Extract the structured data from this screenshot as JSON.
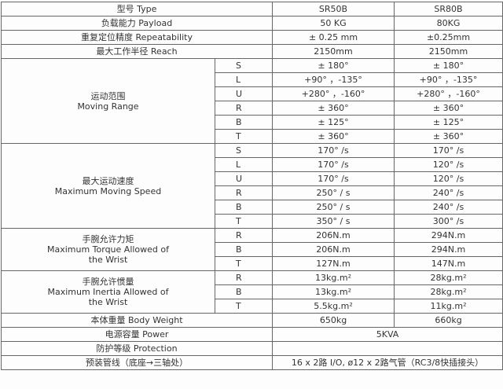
{
  "table": {
    "top_rows": [
      {
        "label": "型号 Type",
        "values": [
          "SR50B",
          "SR80B"
        ]
      },
      {
        "label": "负载能力 Payload",
        "values": [
          "50 KG",
          "80KG"
        ]
      },
      {
        "label": "重复定位精度 Repeatability",
        "values": [
          "± 0.25 mm",
          "±0.25mm"
        ]
      },
      {
        "label": "最大工作半径 Reach",
        "values": [
          "2150mm",
          "2150mm"
        ]
      }
    ],
    "groups": [
      {
        "label": [
          "运动范围",
          "Moving Range"
        ],
        "rows": [
          {
            "axis": "S",
            "values": [
              "± 180°",
              "± 180°"
            ]
          },
          {
            "axis": "L",
            "values": [
              "+90° ，-135°",
              "+90° ，-135°"
            ]
          },
          {
            "axis": "U",
            "values": [
              "+280° ，-160°",
              "+280° ，-160°"
            ]
          },
          {
            "axis": "R",
            "values": [
              "± 360°",
              "± 360°"
            ]
          },
          {
            "axis": "B",
            "values": [
              "± 125°",
              "± 125°"
            ]
          },
          {
            "axis": "T",
            "values": [
              "± 360°",
              "± 360°"
            ]
          }
        ]
      },
      {
        "label": [
          "最大运动速度",
          "Maximum Moving Speed"
        ],
        "rows": [
          {
            "axis": "S",
            "values": [
              "170° /s",
              "170° /s"
            ]
          },
          {
            "axis": "L",
            "values": [
              "170° /s",
              "120° /s"
            ]
          },
          {
            "axis": "U",
            "values": [
              "170° /s",
              "120° /s"
            ]
          },
          {
            "axis": "R",
            "values": [
              "250° / s",
              "240° /s"
            ]
          },
          {
            "axis": "B",
            "values": [
              "250° / s",
              "240° /s"
            ]
          },
          {
            "axis": "T",
            "values": [
              "350° / s",
              "300° /s"
            ]
          }
        ]
      },
      {
        "label": [
          "手腕允许力矩",
          "Maximum Torque Allowed of",
          "the Wrist"
        ],
        "rows": [
          {
            "axis": "R",
            "values": [
              "206N.m",
              "294N.m"
            ]
          },
          {
            "axis": "B",
            "values": [
              "206N.m",
              "294N.m"
            ]
          },
          {
            "axis": "T",
            "values": [
              "127N.m",
              "147N.m"
            ]
          }
        ]
      },
      {
        "label": [
          "手腕允许惯量",
          "Maximum Inertia Allowed of",
          "the Wrist"
        ],
        "rows": [
          {
            "axis": "R",
            "values": [
              "13kg.m²",
              "28kg.m²"
            ]
          },
          {
            "axis": "B",
            "values": [
              "13kg.m²",
              "28kg.m²"
            ]
          },
          {
            "axis": "T",
            "values": [
              "5.5kg.m²",
              "11kg.m²"
            ]
          }
        ]
      }
    ],
    "bottom_rows": [
      {
        "label": "本体重量 Body Weight",
        "values": [
          "650kg",
          "660kg"
        ]
      },
      {
        "label": "电源容量 Power",
        "values": [
          "5KVA"
        ]
      },
      {
        "label": "防护等级 Protection"
      },
      {
        "label": "预装管线（底座→三轴处）",
        "values": [
          "16 x 2路 I/O, ø12 x 2路气管（RC3/8快插接头）"
        ]
      }
    ]
  }
}
